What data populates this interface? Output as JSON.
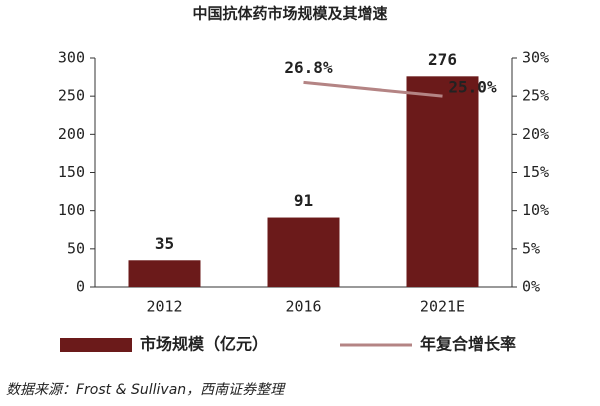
{
  "chart_data": {
    "type": "bar",
    "title": "中国抗体药市场规模及其增速",
    "categories": [
      "2012",
      "2016",
      "2021E"
    ],
    "series": [
      {
        "name": "市场规模（亿元）",
        "type": "bar",
        "color": "#6b1a1a",
        "values": [
          35,
          91,
          276
        ]
      },
      {
        "name": "年复合增长率",
        "type": "line",
        "axis": "y2",
        "color": "#b48484",
        "values": [
          null,
          26.8,
          25.0
        ],
        "value_labels": [
          null,
          "26.8%",
          "25.0%"
        ]
      }
    ],
    "ylim": [
      0,
      300
    ],
    "yticks": [
      0,
      50,
      100,
      150,
      200,
      250,
      300
    ],
    "y2lim": [
      0,
      30
    ],
    "y2ticks": [
      {
        "value": 0,
        "label": "0%"
      },
      {
        "value": 5,
        "label": "5%"
      },
      {
        "value": 10,
        "label": "10%"
      },
      {
        "value": 15,
        "label": "15%"
      },
      {
        "value": 20,
        "label": "20%"
      },
      {
        "value": 25,
        "label": "25%"
      },
      {
        "value": 30,
        "label": "30%"
      }
    ],
    "grid": false,
    "legend": "bottom",
    "source": "数据来源：Frost & Sullivan，西南证券整理"
  }
}
